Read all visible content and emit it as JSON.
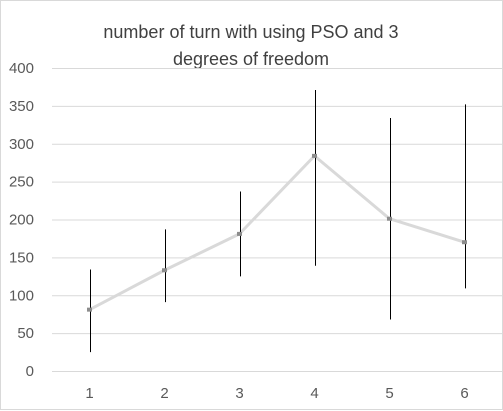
{
  "chart_data": {
    "type": "line",
    "title": "number of turn  with using PSO and 3 degrees of freedom",
    "title_lines": [
      "number of turn  with using PSO and 3",
      "degrees of freedom"
    ],
    "xlabel": "",
    "ylabel": "",
    "categories": [
      "1",
      "2",
      "3",
      "4",
      "5",
      "6"
    ],
    "series": [
      {
        "name": "number of turn",
        "values": [
          81,
          133,
          181,
          284,
          201,
          170
        ],
        "error_low": [
          25,
          91,
          125,
          139,
          68,
          109
        ],
        "error_high": [
          134,
          187,
          237,
          371,
          334,
          352
        ],
        "line_color": "#d9d9d9",
        "marker_color": "#8c8c8c",
        "error_color": "#000000"
      }
    ],
    "ylim": [
      0,
      400
    ],
    "yticks": [
      0,
      50,
      100,
      150,
      200,
      250,
      300,
      350,
      400
    ],
    "grid": true,
    "grid_color": "#d9d9d9",
    "legend": "none"
  }
}
